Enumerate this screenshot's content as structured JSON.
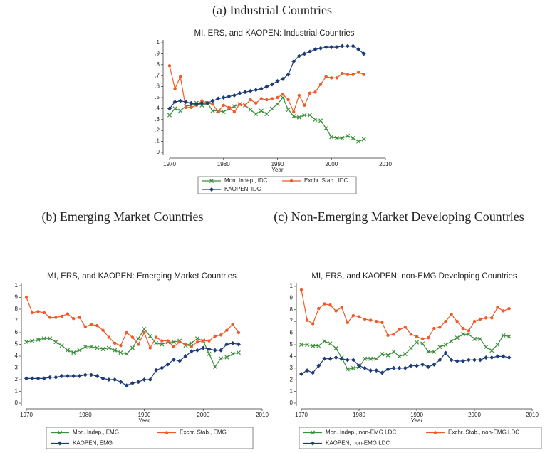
{
  "chart_data": [
    {
      "type": "line",
      "caption": "(a) Industrial Countries",
      "title": "MI, ERS, and KAOPEN: Industrial Countries",
      "x_label": "Year",
      "x": [
        1970,
        1971,
        1972,
        1973,
        1974,
        1975,
        1976,
        1977,
        1978,
        1979,
        1980,
        1981,
        1982,
        1983,
        1984,
        1985,
        1986,
        1987,
        1988,
        1989,
        1990,
        1991,
        1992,
        1993,
        1994,
        1995,
        1996,
        1997,
        1998,
        1999,
        2000,
        2001,
        2002,
        2003,
        2004,
        2005,
        2006
      ],
      "xlim": [
        1970,
        2010
      ],
      "xticks": [
        1970,
        1980,
        1990,
        2000,
        2010
      ],
      "ylim": [
        0,
        1
      ],
      "yticks": [
        0,
        {
          "value": 0.1,
          "label": ".1"
        },
        {
          "value": 0.2,
          "label": ".2"
        },
        {
          "value": 0.3,
          "label": ".3"
        },
        {
          "value": 0.4,
          "label": ".4"
        },
        {
          "value": 0.5,
          "label": ".5"
        },
        {
          "value": 0.6,
          "label": ".6"
        },
        {
          "value": 0.7,
          "label": ".7"
        },
        {
          "value": 0.8,
          "label": ".8"
        },
        {
          "value": 0.9,
          "label": ".9"
        },
        1
      ],
      "series": [
        {
          "name": "Mon. Indep., IDC",
          "color": "#3a8f3a",
          "marker": "x",
          "values": [
            0.34,
            0.4,
            0.38,
            0.42,
            0.43,
            0.45,
            0.43,
            0.45,
            0.38,
            0.38,
            0.37,
            0.4,
            0.42,
            0.44,
            0.43,
            0.39,
            0.35,
            0.38,
            0.35,
            0.4,
            0.44,
            0.5,
            0.39,
            0.33,
            0.32,
            0.34,
            0.34,
            0.3,
            0.29,
            0.22,
            0.14,
            0.13,
            0.13,
            0.15,
            0.13,
            0.1,
            0.12
          ]
        },
        {
          "name": "Exchr. Stab., IDC",
          "color": "#f05a28",
          "marker": "circle",
          "values": [
            0.79,
            0.58,
            0.69,
            0.41,
            0.41,
            0.43,
            0.47,
            0.45,
            0.44,
            0.37,
            0.43,
            0.41,
            0.37,
            0.44,
            0.43,
            0.48,
            0.45,
            0.49,
            0.48,
            0.49,
            0.5,
            0.53,
            0.48,
            0.37,
            0.52,
            0.43,
            0.54,
            0.55,
            0.62,
            0.69,
            0.68,
            0.68,
            0.72,
            0.71,
            0.71,
            0.73,
            0.71
          ]
        },
        {
          "name": "KAOPEN, IDC",
          "color": "#1f3c7a",
          "marker": "diamond",
          "values": [
            0.4,
            0.46,
            0.47,
            0.46,
            0.45,
            0.44,
            0.45,
            0.45,
            0.47,
            0.49,
            0.5,
            0.51,
            0.52,
            0.54,
            0.55,
            0.56,
            0.57,
            0.58,
            0.6,
            0.62,
            0.65,
            0.67,
            0.71,
            0.83,
            0.88,
            0.9,
            0.92,
            0.94,
            0.95,
            0.96,
            0.96,
            0.96,
            0.97,
            0.97,
            0.97,
            0.94,
            0.9
          ]
        }
      ]
    },
    {
      "type": "line",
      "caption": "(b) Emerging Market Countries",
      "title": "MI, ERS, and KAOPEN: Emerging Market Countries",
      "x_label": "Year",
      "x": [
        1970,
        1971,
        1972,
        1973,
        1974,
        1975,
        1976,
        1977,
        1978,
        1979,
        1980,
        1981,
        1982,
        1983,
        1984,
        1985,
        1986,
        1987,
        1988,
        1989,
        1990,
        1991,
        1992,
        1993,
        1994,
        1995,
        1996,
        1997,
        1998,
        1999,
        2000,
        2001,
        2002,
        2003,
        2004,
        2005,
        2006
      ],
      "xlim": [
        1970,
        2010
      ],
      "xticks": [
        1970,
        1980,
        1990,
        2000,
        2010
      ],
      "ylim": [
        0,
        1
      ],
      "yticks": [
        0,
        {
          "value": 0.1,
          "label": ".1"
        },
        {
          "value": 0.2,
          "label": ".2"
        },
        {
          "value": 0.3,
          "label": ".3"
        },
        {
          "value": 0.4,
          "label": ".4"
        },
        {
          "value": 0.5,
          "label": ".5"
        },
        {
          "value": 0.6,
          "label": ".6"
        },
        {
          "value": 0.7,
          "label": ".7"
        },
        {
          "value": 0.8,
          "label": ".8"
        },
        {
          "value": 0.9,
          "label": ".9"
        },
        1
      ],
      "series": [
        {
          "name": "Mon. Indep., EMG",
          "color": "#3a8f3a",
          "marker": "x",
          "values": [
            0.52,
            0.53,
            0.54,
            0.55,
            0.55,
            0.52,
            0.49,
            0.45,
            0.43,
            0.45,
            0.48,
            0.48,
            0.47,
            0.46,
            0.47,
            0.45,
            0.43,
            0.42,
            0.47,
            0.55,
            0.63,
            0.57,
            0.51,
            0.5,
            0.52,
            0.52,
            0.53,
            0.49,
            0.51,
            0.55,
            0.53,
            0.42,
            0.31,
            0.38,
            0.39,
            0.42,
            0.43
          ]
        },
        {
          "name": "Exchr. Stab., EMG",
          "color": "#f05a28",
          "marker": "circle",
          "values": [
            0.9,
            0.77,
            0.78,
            0.77,
            0.73,
            0.73,
            0.74,
            0.76,
            0.72,
            0.73,
            0.65,
            0.67,
            0.66,
            0.62,
            0.56,
            0.51,
            0.49,
            0.6,
            0.56,
            0.5,
            0.6,
            0.47,
            0.56,
            0.53,
            0.53,
            0.48,
            0.52,
            0.5,
            0.48,
            0.52,
            0.53,
            0.53,
            0.57,
            0.58,
            0.62,
            0.67,
            0.6
          ]
        },
        {
          "name": "KAOPEN, EMG",
          "color": "#1f3c7a",
          "marker": "diamond",
          "values": [
            0.21,
            0.21,
            0.21,
            0.21,
            0.22,
            0.22,
            0.23,
            0.23,
            0.23,
            0.23,
            0.24,
            0.24,
            0.23,
            0.21,
            0.2,
            0.2,
            0.18,
            0.15,
            0.17,
            0.18,
            0.2,
            0.2,
            0.28,
            0.3,
            0.33,
            0.37,
            0.36,
            0.4,
            0.44,
            0.45,
            0.47,
            0.46,
            0.45,
            0.45,
            0.5,
            0.51,
            0.5
          ]
        }
      ]
    },
    {
      "type": "line",
      "caption": "(c) Non-Emerging Market Developing Countries",
      "title": "MI, ERS, and KAOPEN: non-EMG Developing Countries",
      "x_label": "Year",
      "x": [
        1970,
        1971,
        1972,
        1973,
        1974,
        1975,
        1976,
        1977,
        1978,
        1979,
        1980,
        1981,
        1982,
        1983,
        1984,
        1985,
        1986,
        1987,
        1988,
        1989,
        1990,
        1991,
        1992,
        1993,
        1994,
        1995,
        1996,
        1997,
        1998,
        1999,
        2000,
        2001,
        2002,
        2003,
        2004,
        2005,
        2006
      ],
      "xlim": [
        1970,
        2010
      ],
      "xticks": [
        1970,
        1980,
        1990,
        2000,
        2010
      ],
      "ylim": [
        0,
        1
      ],
      "yticks": [
        0,
        {
          "value": 0.1,
          "label": ".1"
        },
        {
          "value": 0.2,
          "label": ".2"
        },
        {
          "value": 0.3,
          "label": ".3"
        },
        {
          "value": 0.4,
          "label": ".4"
        },
        {
          "value": 0.5,
          "label": ".5"
        },
        {
          "value": 0.6,
          "label": ".6"
        },
        {
          "value": 0.7,
          "label": ".7"
        },
        {
          "value": 0.8,
          "label": ".8"
        },
        {
          "value": 0.9,
          "label": ".9"
        },
        1
      ],
      "series": [
        {
          "name": "Mon. Indep., non-EMG LDC",
          "color": "#3a8f3a",
          "marker": "x",
          "values": [
            0.5,
            0.5,
            0.49,
            0.49,
            0.53,
            0.51,
            0.47,
            0.39,
            0.29,
            0.3,
            0.31,
            0.38,
            0.38,
            0.38,
            0.42,
            0.41,
            0.44,
            0.4,
            0.42,
            0.47,
            0.52,
            0.51,
            0.44,
            0.44,
            0.48,
            0.5,
            0.53,
            0.56,
            0.59,
            0.59,
            0.55,
            0.55,
            0.48,
            0.45,
            0.5,
            0.58,
            0.57
          ]
        },
        {
          "name": "Exchr. Stab., non-EMG LDC",
          "color": "#f05a28",
          "marker": "circle",
          "values": [
            0.97,
            0.71,
            0.68,
            0.81,
            0.85,
            0.84,
            0.79,
            0.82,
            0.69,
            0.75,
            0.74,
            0.72,
            0.71,
            0.7,
            0.69,
            0.58,
            0.59,
            0.63,
            0.65,
            0.59,
            0.57,
            0.55,
            0.56,
            0.64,
            0.65,
            0.7,
            0.76,
            0.7,
            0.64,
            0.62,
            0.7,
            0.72,
            0.73,
            0.73,
            0.82,
            0.79,
            0.81
          ]
        },
        {
          "name": "KAOPEN, non-EMG LDC",
          "color": "#1f3c7a",
          "marker": "diamond",
          "values": [
            0.25,
            0.28,
            0.26,
            0.32,
            0.38,
            0.38,
            0.39,
            0.38,
            0.37,
            0.37,
            0.32,
            0.3,
            0.28,
            0.28,
            0.26,
            0.29,
            0.3,
            0.3,
            0.3,
            0.32,
            0.32,
            0.33,
            0.31,
            0.33,
            0.37,
            0.43,
            0.37,
            0.36,
            0.36,
            0.37,
            0.37,
            0.37,
            0.39,
            0.39,
            0.4,
            0.4,
            0.39
          ]
        }
      ]
    }
  ]
}
